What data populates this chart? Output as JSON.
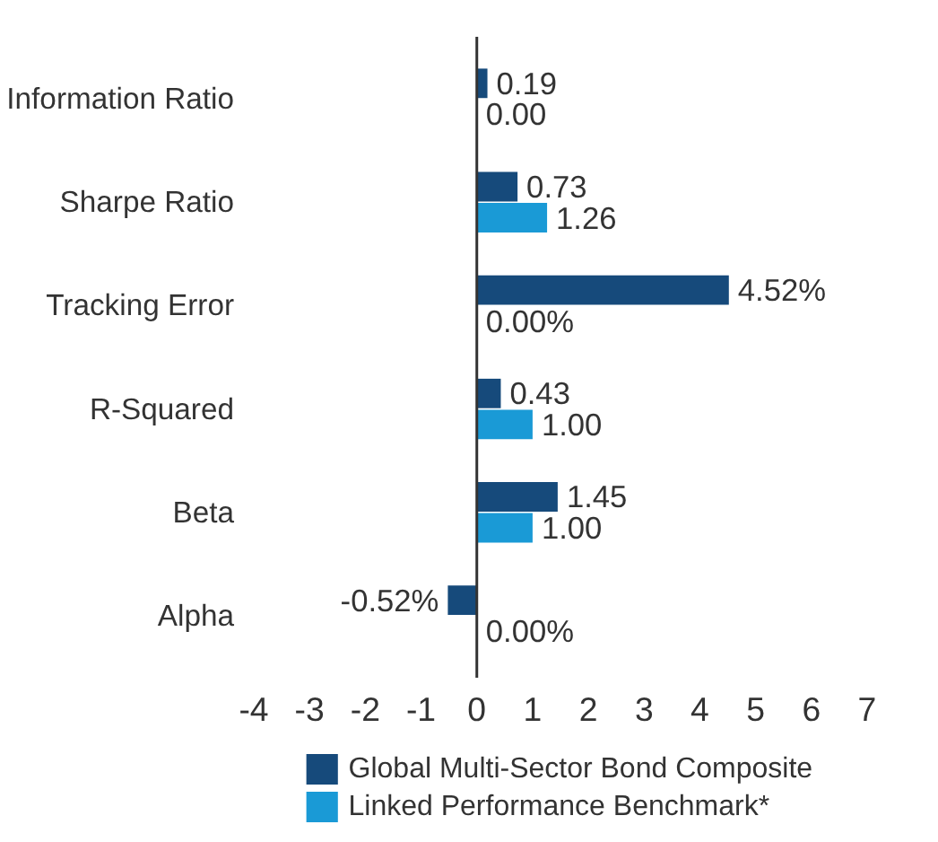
{
  "chart_data": {
    "type": "bar",
    "orientation": "horizontal",
    "categories": [
      "Information Ratio",
      "Sharpe Ratio",
      "Tracking Error",
      "R-Squared",
      "Beta",
      "Alpha"
    ],
    "series": [
      {
        "name": "Global Multi-Sector Bond Composite",
        "color": "#164a7b",
        "values": [
          0.19,
          0.73,
          4.52,
          0.43,
          1.45,
          -0.52
        ],
        "value_labels": [
          "0.19",
          "0.73",
          "4.52%",
          "0.43",
          "1.45",
          "-0.52%"
        ]
      },
      {
        "name": "Linked Performance Benchmark*",
        "color": "#1a9ad6",
        "values": [
          0.0,
          1.26,
          0.0,
          1.0,
          1.0,
          0.0
        ],
        "value_labels": [
          "0.00",
          "1.26",
          "0.00%",
          "1.00",
          "1.00",
          "0.00%"
        ]
      }
    ],
    "xlim": [
      -4,
      7
    ],
    "xticks": [
      -4,
      -3,
      -2,
      -1,
      0,
      1,
      2,
      3,
      4,
      5,
      6,
      7
    ],
    "ref_lines": [
      {
        "axis": "x",
        "value": 0,
        "color": "#333333"
      }
    ],
    "grid": false,
    "legend": "bottom"
  }
}
